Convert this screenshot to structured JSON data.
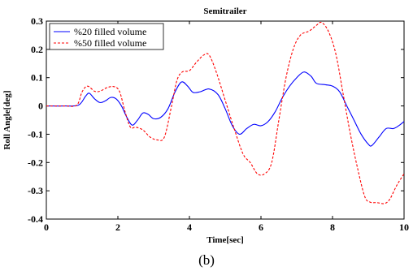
{
  "caption": "(b)",
  "chart_data": {
    "type": "line",
    "title": "Semitrailer",
    "xlabel": "Time[sec]",
    "ylabel": "Roll Angle[deg]",
    "xlim": [
      0,
      10
    ],
    "ylim": [
      -0.4,
      0.3
    ],
    "xticks": [
      "0",
      "2",
      "4",
      "6",
      "8",
      "10"
    ],
    "yticks": [
      "0.3",
      "0.2",
      "0.1",
      "0",
      "-0.1",
      "-0.2",
      "-0.3",
      "-0.4"
    ],
    "grid": false,
    "legend_position": "top-left",
    "series": [
      {
        "name": "%20 filled volume",
        "color": "#0000ff",
        "style": "solid",
        "points": [
          [
            0,
            0
          ],
          [
            0.5,
            0
          ],
          [
            0.9,
            0.003
          ],
          [
            1.1,
            0.035
          ],
          [
            1.2,
            0.045
          ],
          [
            1.35,
            0.025
          ],
          [
            1.5,
            0.012
          ],
          [
            1.65,
            0.018
          ],
          [
            1.8,
            0.03
          ],
          [
            1.95,
            0.025
          ],
          [
            2.1,
            0.0
          ],
          [
            2.25,
            -0.04
          ],
          [
            2.4,
            -0.068
          ],
          [
            2.55,
            -0.05
          ],
          [
            2.7,
            -0.025
          ],
          [
            2.85,
            -0.03
          ],
          [
            3.0,
            -0.045
          ],
          [
            3.2,
            -0.04
          ],
          [
            3.4,
            -0.01
          ],
          [
            3.6,
            0.05
          ],
          [
            3.78,
            0.085
          ],
          [
            3.95,
            0.07
          ],
          [
            4.1,
            0.048
          ],
          [
            4.3,
            0.05
          ],
          [
            4.55,
            0.06
          ],
          [
            4.8,
            0.04
          ],
          [
            5.0,
            -0.01
          ],
          [
            5.2,
            -0.07
          ],
          [
            5.4,
            -0.1
          ],
          [
            5.6,
            -0.08
          ],
          [
            5.8,
            -0.065
          ],
          [
            6.0,
            -0.07
          ],
          [
            6.2,
            -0.055
          ],
          [
            6.4,
            -0.02
          ],
          [
            6.6,
            0.03
          ],
          [
            6.8,
            0.07
          ],
          [
            7.0,
            0.1
          ],
          [
            7.2,
            0.12
          ],
          [
            7.4,
            0.105
          ],
          [
            7.55,
            0.08
          ],
          [
            7.8,
            0.075
          ],
          [
            8.0,
            0.07
          ],
          [
            8.2,
            0.05
          ],
          [
            8.4,
            0.0
          ],
          [
            8.6,
            -0.05
          ],
          [
            8.8,
            -0.1
          ],
          [
            9.0,
            -0.135
          ],
          [
            9.1,
            -0.14
          ],
          [
            9.3,
            -0.11
          ],
          [
            9.5,
            -0.08
          ],
          [
            9.7,
            -0.08
          ],
          [
            9.85,
            -0.07
          ],
          [
            10.0,
            -0.055
          ]
        ]
      },
      {
        "name": "%50 filled volume",
        "color": "#ff0000",
        "style": "dashed",
        "points": [
          [
            0,
            0
          ],
          [
            0.5,
            0
          ],
          [
            0.85,
            0.003
          ],
          [
            1.0,
            0.05
          ],
          [
            1.15,
            0.07
          ],
          [
            1.35,
            0.052
          ],
          [
            1.5,
            0.052
          ],
          [
            1.7,
            0.065
          ],
          [
            1.9,
            0.068
          ],
          [
            2.05,
            0.05
          ],
          [
            2.2,
            -0.02
          ],
          [
            2.35,
            -0.075
          ],
          [
            2.5,
            -0.075
          ],
          [
            2.7,
            -0.085
          ],
          [
            2.9,
            -0.11
          ],
          [
            3.1,
            -0.12
          ],
          [
            3.3,
            -0.11
          ],
          [
            3.5,
            0.0
          ],
          [
            3.65,
            0.09
          ],
          [
            3.8,
            0.12
          ],
          [
            4.0,
            0.125
          ],
          [
            4.2,
            0.155
          ],
          [
            4.4,
            0.18
          ],
          [
            4.55,
            0.18
          ],
          [
            4.75,
            0.12
          ],
          [
            5.0,
            0.02
          ],
          [
            5.25,
            -0.08
          ],
          [
            5.5,
            -0.17
          ],
          [
            5.7,
            -0.2
          ],
          [
            5.9,
            -0.24
          ],
          [
            6.1,
            -0.24
          ],
          [
            6.3,
            -0.2
          ],
          [
            6.5,
            -0.05
          ],
          [
            6.7,
            0.1
          ],
          [
            6.9,
            0.2
          ],
          [
            7.1,
            0.25
          ],
          [
            7.35,
            0.265
          ],
          [
            7.55,
            0.285
          ],
          [
            7.7,
            0.295
          ],
          [
            7.9,
            0.26
          ],
          [
            8.1,
            0.18
          ],
          [
            8.3,
            0.04
          ],
          [
            8.5,
            -0.1
          ],
          [
            8.7,
            -0.22
          ],
          [
            8.9,
            -0.32
          ],
          [
            9.05,
            -0.34
          ],
          [
            9.25,
            -0.342
          ],
          [
            9.45,
            -0.345
          ],
          [
            9.6,
            -0.33
          ],
          [
            9.8,
            -0.28
          ],
          [
            10.0,
            -0.24
          ]
        ]
      }
    ]
  }
}
